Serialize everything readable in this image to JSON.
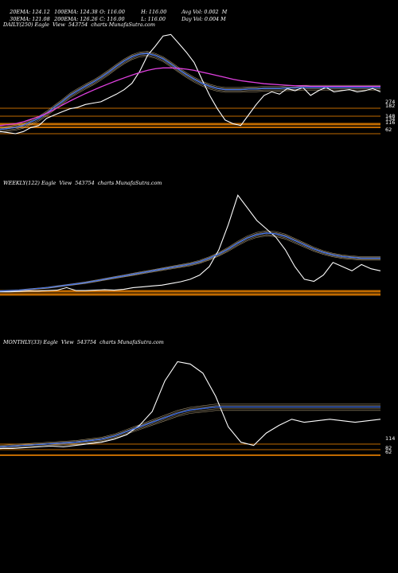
{
  "header": {
    "row1": [
      {
        "label": "20EMA: 124.12"
      },
      {
        "label": "100EMA: 124.38"
      },
      {
        "label": "O: 116.00"
      },
      {
        "label": "H: 116.00"
      },
      {
        "label": "Avg Vol: 0.002  M"
      }
    ],
    "row2": [
      {
        "label": "30EMA: 121.08"
      },
      {
        "label": "200EMA: 126.26"
      },
      {
        "label": "C: 116.00"
      },
      {
        "label": "L: 116.00"
      },
      {
        "label": "Day Vol: 0.004 M"
      }
    ]
  },
  "colors": {
    "background": "#000000",
    "price": "#ffffff",
    "ema_blue": "#3f6fe8",
    "ema_magenta": "#e040e0",
    "ema_tan": "#c8b48c",
    "support_orange": "#c06a00"
  },
  "chart_data": [
    {
      "type": "line",
      "title": "DAILY(250) Eagle  View  543754  charts MunafaSutra.com",
      "right_ticks": [
        "274",
        "182",
        "148",
        "134",
        "116",
        "62"
      ],
      "series": [
        {
          "values": [
            64,
            63,
            62,
            64,
            68,
            70,
            78,
            82,
            86,
            90,
            92,
            96,
            98,
            100,
            106,
            112,
            120,
            132,
            158,
            200,
            230,
            268,
            274,
            240,
            210,
            180,
            140,
            110,
            90,
            76,
            72,
            70,
            82,
            96,
            110,
            116,
            112,
            122,
            118,
            124,
            110,
            118,
            124,
            116,
            118,
            120,
            116,
            118,
            122,
            116
          ]
        },
        {
          "values": [
            66,
            67,
            68,
            70,
            74,
            78,
            84,
            92,
            100,
            110,
            118,
            126,
            134,
            144,
            156,
            170,
            184,
            196,
            204,
            206,
            200,
            190,
            176,
            162,
            150,
            140,
            132,
            126,
            122,
            120,
            120,
            120,
            121,
            121,
            122,
            122,
            122,
            123,
            123,
            124,
            124,
            124,
            124,
            124,
            124,
            124,
            124,
            124,
            124,
            124
          ]
        },
        {
          "values": [
            70,
            71,
            72,
            74,
            77,
            80,
            84,
            89,
            95,
            101,
            107,
            113,
            119,
            125,
            131,
            137,
            143,
            149,
            155,
            160,
            164,
            166,
            166,
            165,
            163,
            160,
            156,
            152,
            148,
            144,
            140,
            137,
            135,
            133,
            131,
            130,
            129,
            128,
            127,
            127,
            126,
            126,
            126,
            126,
            126,
            126,
            126,
            126,
            126,
            126
          ]
        }
      ]
    },
    {
      "type": "line",
      "title": "WEEKLY(122) Eagle  View  543754  charts MunafaSutra.com",
      "right_ticks": [],
      "series": [
        {
          "values": [
            30,
            30,
            31,
            32,
            32,
            33,
            34,
            40,
            33,
            33,
            34,
            35,
            34,
            36,
            40,
            42,
            44,
            46,
            50,
            54,
            60,
            70,
            90,
            130,
            190,
            260,
            230,
            200,
            180,
            160,
            130,
            90,
            60,
            55,
            70,
            100,
            90,
            80,
            95,
            85,
            80
          ]
        },
        {
          "values": [
            32,
            33,
            34,
            36,
            38,
            40,
            43,
            46,
            49,
            52,
            56,
            60,
            64,
            68,
            72,
            76,
            80,
            84,
            88,
            92,
            96,
            102,
            110,
            120,
            132,
            146,
            158,
            166,
            170,
            168,
            162,
            152,
            142,
            132,
            124,
            118,
            114,
            112,
            110,
            110,
            110
          ]
        }
      ]
    },
    {
      "type": "line",
      "title": "MONTHLY(33) Eagle  View  543754  charts MunafaSutra.com",
      "right_ticks": [
        "114",
        "82",
        "62"
      ],
      "series": [
        {
          "values": [
            62,
            62,
            63,
            64,
            65,
            64,
            66,
            68,
            70,
            74,
            80,
            92,
            110,
            150,
            175,
            172,
            160,
            130,
            90,
            70,
            66,
            82,
            92,
            100,
            96,
            98,
            100,
            98,
            96,
            98,
            100
          ]
        },
        {
          "values": [
            64,
            65,
            66,
            67,
            68,
            69,
            70,
            72,
            74,
            78,
            84,
            90,
            96,
            102,
            108,
            112,
            114,
            116,
            116,
            116,
            116,
            116,
            116,
            116,
            116,
            116,
            116,
            116,
            116,
            116,
            116
          ]
        }
      ]
    }
  ]
}
